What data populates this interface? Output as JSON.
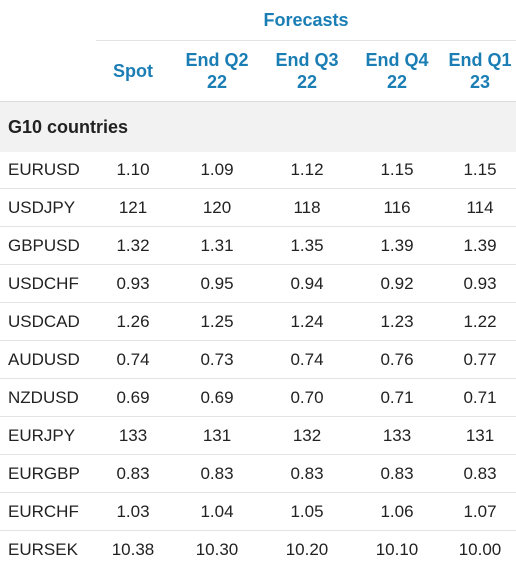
{
  "header": {
    "forecasts_label": "Forecasts"
  },
  "columns": [
    "Spot",
    "End Q2 22",
    "End Q3 22",
    "End Q4 22",
    "End Q1 23"
  ],
  "column_lines": [
    [
      "Spot"
    ],
    [
      "End Q2",
      "22"
    ],
    [
      "End Q3",
      "22"
    ],
    [
      "End Q4",
      "22"
    ],
    [
      "End Q1",
      "23"
    ]
  ],
  "group": {
    "label": "G10 countries"
  },
  "rows": [
    {
      "pair": "EURUSD",
      "values": [
        "1.10",
        "1.09",
        "1.12",
        "1.15",
        "1.15"
      ]
    },
    {
      "pair": "USDJPY",
      "values": [
        "121",
        "120",
        "118",
        "116",
        "114"
      ]
    },
    {
      "pair": "GBPUSD",
      "values": [
        "1.32",
        "1.31",
        "1.35",
        "1.39",
        "1.39"
      ]
    },
    {
      "pair": "USDCHF",
      "values": [
        "0.93",
        "0.95",
        "0.94",
        "0.92",
        "0.93"
      ]
    },
    {
      "pair": "USDCAD",
      "values": [
        "1.26",
        "1.25",
        "1.24",
        "1.23",
        "1.22"
      ]
    },
    {
      "pair": "AUDUSD",
      "values": [
        "0.74",
        "0.73",
        "0.74",
        "0.76",
        "0.77"
      ]
    },
    {
      "pair": "NZDUSD",
      "values": [
        "0.69",
        "0.69",
        "0.70",
        "0.71",
        "0.71"
      ]
    },
    {
      "pair": "EURJPY",
      "values": [
        "133",
        "131",
        "132",
        "133",
        "131"
      ]
    },
    {
      "pair": "EURGBP",
      "values": [
        "0.83",
        "0.83",
        "0.83",
        "0.83",
        "0.83"
      ]
    },
    {
      "pair": "EURCHF",
      "values": [
        "1.03",
        "1.04",
        "1.05",
        "1.06",
        "1.07"
      ]
    },
    {
      "pair": "EURSEK",
      "values": [
        "10.38",
        "10.30",
        "10.20",
        "10.10",
        "10.00"
      ]
    }
  ],
  "colors": {
    "accent": "#1a7eb5",
    "group_bg": "#f2f2f2",
    "divider": "#e3e3e3"
  }
}
